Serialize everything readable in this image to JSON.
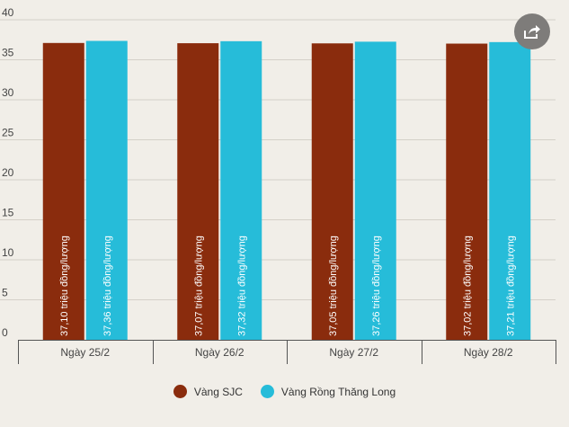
{
  "chart_data": {
    "type": "bar",
    "categories": [
      "Ngày 25/2",
      "Ngày 26/2",
      "Ngày 27/2",
      "Ngày 28/2"
    ],
    "series": [
      {
        "name": "Vàng SJC",
        "color": "#8a2c0d",
        "values": [
          37.1,
          37.07,
          37.05,
          37.02
        ],
        "labels": [
          "37,10 triệu đồng/lượng",
          "37,07 triệu đồng/lượng",
          "37,05 triệu đồng/lượng",
          "37,02 triệu đồng/lượng"
        ]
      },
      {
        "name": "Vàng Rồng Thăng Long",
        "color": "#26bcd9",
        "values": [
          37.36,
          37.32,
          37.26,
          37.21
        ],
        "labels": [
          "37,36 triệu đồng/lượng",
          "37,32 triệu đồng/lượng",
          "37,26 triệu đồng/lượng",
          "37,21 triệu đồng/lượng"
        ]
      }
    ],
    "yticks": [
      "0",
      "5",
      "10",
      "15",
      "20",
      "25",
      "30",
      "35",
      "40"
    ],
    "ylim": [
      0,
      40
    ],
    "grid": true,
    "legend_position": "bottom-center"
  },
  "share_icon": "share-icon"
}
